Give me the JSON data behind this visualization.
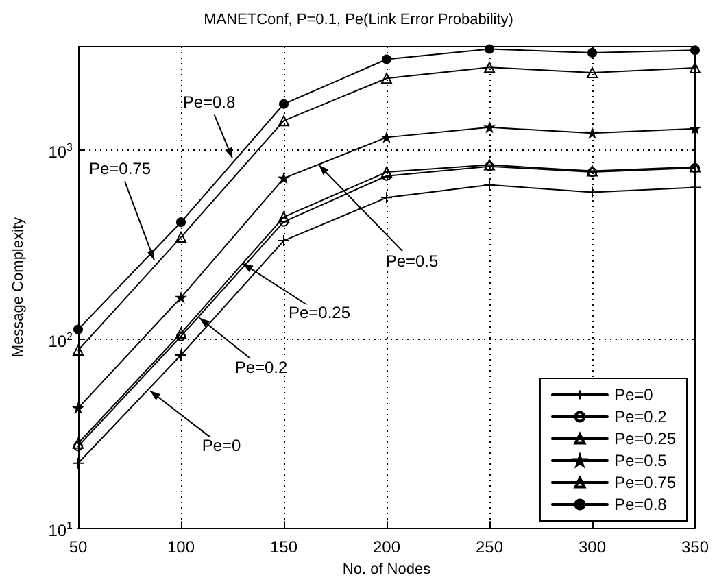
{
  "chart_data": {
    "type": "line",
    "title": "MANETConf, P=0.1, Pe(Link Error Probability)",
    "xlabel": "No. of Nodes",
    "ylabel": "Message Complexity",
    "x": [
      50,
      100,
      150,
      200,
      250,
      300,
      350
    ],
    "series": [
      {
        "name": "Pe=0",
        "color": "#000000",
        "marker": "cross",
        "values": [
          22,
          82,
          330,
          557,
          650,
          595,
          630
        ]
      },
      {
        "name": "Pe=0.2",
        "color": "#000000",
        "marker": "circle",
        "values": [
          27,
          103,
          415,
          725,
          815,
          760,
          800
        ]
      },
      {
        "name": "Pe=0.25",
        "color": "#000000",
        "marker": "triangle",
        "values": [
          28,
          107,
          440,
          760,
          830,
          770,
          810
        ]
      },
      {
        "name": "Pe=0.5",
        "color": "#000000",
        "marker": "star",
        "values": [
          43,
          165,
          705,
          1160,
          1310,
          1220,
          1290
        ]
      },
      {
        "name": "Pe=0.75",
        "color": "#000000",
        "marker": "triangle",
        "values": [
          87,
          344,
          1420,
          2380,
          2720,
          2550,
          2700
        ]
      },
      {
        "name": "Pe=0.8",
        "color": "#000000",
        "marker": "circle",
        "values": [
          112,
          413,
          1740,
          3000,
          3400,
          3250,
          3350
        ]
      }
    ],
    "annotations": [
      {
        "text": "Pe=0.8",
        "x": 125,
        "y": 900
      },
      {
        "text": "Pe=0.75",
        "x": 87,
        "y": 260
      },
      {
        "text": "Pe=0.5",
        "x": 167,
        "y": 830
      },
      {
        "text": "Pe=0.25",
        "x": 130,
        "y": 250
      },
      {
        "text": "Pe=0.2",
        "x": 109,
        "y": 129
      },
      {
        "text": "Pe=0",
        "x": 85,
        "y": 53
      }
    ],
    "log": "y",
    "xlim": [
      50,
      350
    ],
    "ylim": [
      10,
      3500
    ],
    "xticks": [
      50,
      100,
      150,
      200,
      250,
      300,
      350
    ],
    "yticks": [
      {
        "value": 10,
        "label": "10$^{1}$"
      },
      {
        "value": 100,
        "label": "10$^{2}$"
      },
      {
        "value": 1000,
        "label": "10$^{3}$"
      }
    ],
    "grid": true,
    "legend": "bottom right"
  }
}
